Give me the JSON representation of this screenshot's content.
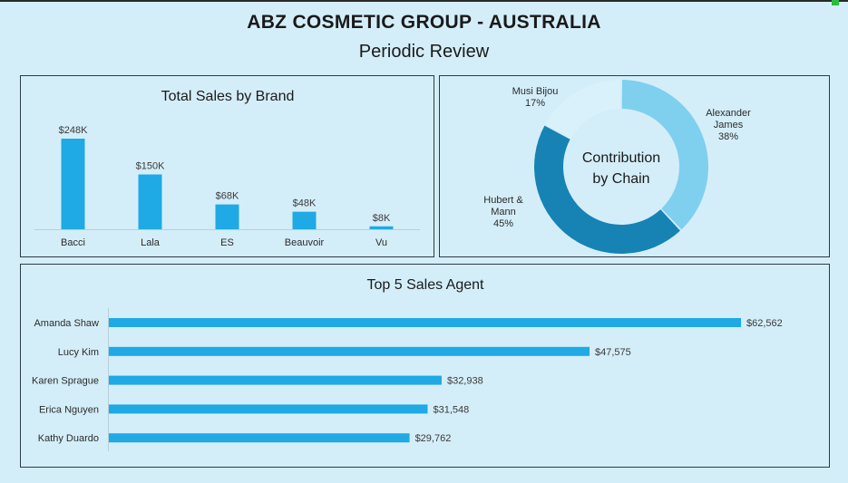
{
  "header": {
    "title": "ABZ COSMETIC GROUP - AUSTRALIA",
    "subtitle": "Periodic Review"
  },
  "colors": {
    "bar": "#1fa9e5",
    "donut": [
      "#7fcfef",
      "#1683b4",
      "#d9f1fb"
    ],
    "background": "#d4eef9",
    "border": "#2b3a46"
  },
  "chart_data": [
    {
      "type": "bar",
      "title": "Total Sales by Brand",
      "categories": [
        "Bacci",
        "Lala",
        "ES",
        "Beauvoir",
        "Vu"
      ],
      "values": [
        248000,
        150000,
        68000,
        48000,
        8000
      ],
      "data_labels": [
        "$248K",
        "$150K",
        "$68K",
        "$48K",
        "$8K"
      ],
      "xlabel": "",
      "ylabel": "",
      "grid": false
    },
    {
      "type": "pie",
      "donut": true,
      "title": "Contribution by Chain",
      "title_lines": [
        "Contribution",
        "by Chain"
      ],
      "slices": [
        {
          "label_lines": [
            "Alexander",
            "James"
          ],
          "percent_label": "38%",
          "value": 38
        },
        {
          "label_lines": [
            "Hubert &",
            "Mann"
          ],
          "percent_label": "45%",
          "value": 45
        },
        {
          "label_lines": [
            "Musi Bijou"
          ],
          "percent_label": "17%",
          "value": 17
        }
      ]
    },
    {
      "type": "bar",
      "orientation": "horizontal",
      "title": "Top 5 Sales Agent",
      "categories": [
        "Amanda Shaw",
        "Lucy Kim",
        "Karen Sprague",
        "Erica Nguyen",
        "Kathy Duardo"
      ],
      "values": [
        62562,
        47575,
        32938,
        31548,
        29762
      ],
      "data_labels": [
        "$62,562",
        "$47,575",
        "$32,938",
        "$31,548",
        "$29,762"
      ],
      "xlabel": "",
      "ylabel": "",
      "grid": false
    }
  ]
}
